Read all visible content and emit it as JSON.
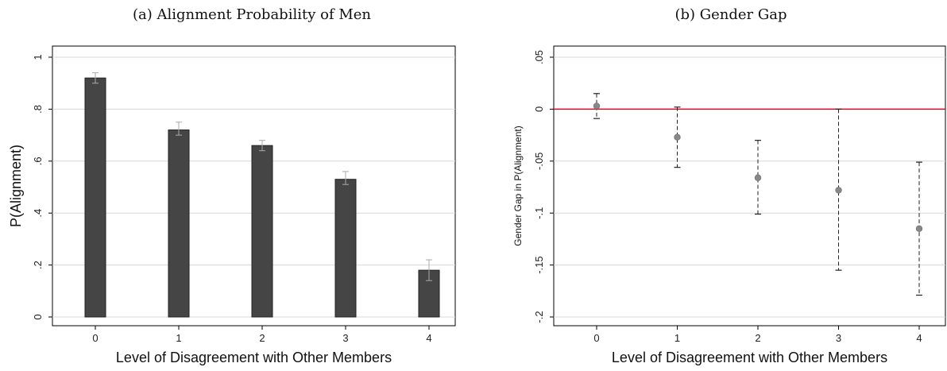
{
  "chart_data": [
    {
      "type": "bar",
      "title": "(a) Alignment Probability of Men",
      "xlabel": "Level of Disagreement with Other Members",
      "ylabel": "P(Alignment)",
      "categories": [
        "0",
        "1",
        "2",
        "3",
        "4"
      ],
      "values": [
        0.92,
        0.72,
        0.66,
        0.53,
        0.18
      ],
      "ci_low": [
        0.9,
        0.7,
        0.64,
        0.51,
        0.14
      ],
      "ci_high": [
        0.94,
        0.75,
        0.68,
        0.56,
        0.22
      ],
      "ylim": [
        0,
        1
      ],
      "yticks": [
        "0",
        ".2",
        ".4",
        ".6",
        ".8",
        "1"
      ],
      "bar_color": "#454545",
      "grid": true
    },
    {
      "type": "scatter",
      "title": "(b) Gender Gap",
      "xlabel": "Level of Disagreement with Other Members",
      "ylabel": "Gender Gap in P(Alignment)",
      "categories": [
        "0",
        "1",
        "2",
        "3",
        "4"
      ],
      "values": [
        0.003,
        -0.027,
        -0.066,
        -0.078,
        -0.115
      ],
      "ci_low": [
        -0.009,
        -0.056,
        -0.101,
        -0.155,
        -0.179
      ],
      "ci_high": [
        0.015,
        0.002,
        -0.03,
        0.0,
        -0.051
      ],
      "ylim": [
        -0.2,
        0.05
      ],
      "yticks": [
        "-.2",
        "-.15",
        "-.1",
        "-.05",
        "0",
        ".05"
      ],
      "reference_line": 0,
      "reference_color": "#c8102e",
      "point_color": "#888888",
      "grid": true
    }
  ]
}
